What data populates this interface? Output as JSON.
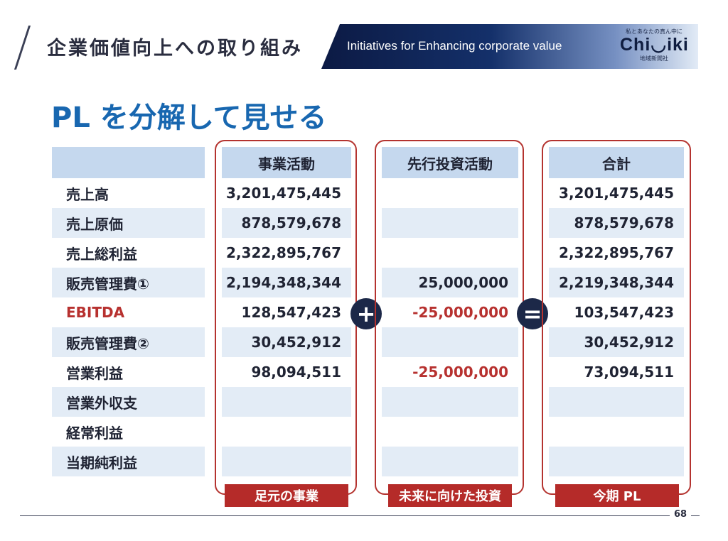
{
  "header": {
    "title": "企業価値向上への取り組み",
    "banner_text": "Initiatives for Enhancing corporate value"
  },
  "logo": {
    "tagline": "私とあなたの真ん中に",
    "name": "Chi◡iki",
    "subtitle": "地域新聞社"
  },
  "main_title": "PL を分解して見せる",
  "table": {
    "row_labels": [
      "売上高",
      "売上原価",
      "売上総利益",
      "販売管理費①",
      "EBITDA",
      "販売管理費②",
      "営業利益",
      "営業外収支",
      "経常利益",
      "当期純利益"
    ],
    "columns": [
      {
        "header": "事業活動",
        "values": [
          "3,201,475,445",
          "878,579,678",
          "2,322,895,767",
          "2,194,348,344",
          "128,547,423",
          "30,452,912",
          "98,094,511",
          "",
          "",
          ""
        ],
        "footer": "足元の事業"
      },
      {
        "header": "先行投資活動",
        "values": [
          "",
          "",
          "",
          "25,000,000",
          "-25,000,000",
          "",
          "-25,000,000",
          "",
          "",
          ""
        ],
        "footer": "未来に向けた投資"
      },
      {
        "header": "合計",
        "values": [
          "3,201,475,445",
          "878,579,678",
          "2,322,895,767",
          "2,219,348,344",
          "103,547,423",
          "30,452,912",
          "73,094,511",
          "",
          "",
          ""
        ],
        "footer": "今期 PL"
      }
    ]
  },
  "operators": {
    "plus": "+",
    "equals": "="
  },
  "page_number": "68",
  "colors": {
    "accent_red": "#b52b29",
    "title_blue": "#1867b0",
    "header_fill": "#c5d8ee",
    "row_shade": "#e3ecf6",
    "navy": "#1c2848"
  }
}
